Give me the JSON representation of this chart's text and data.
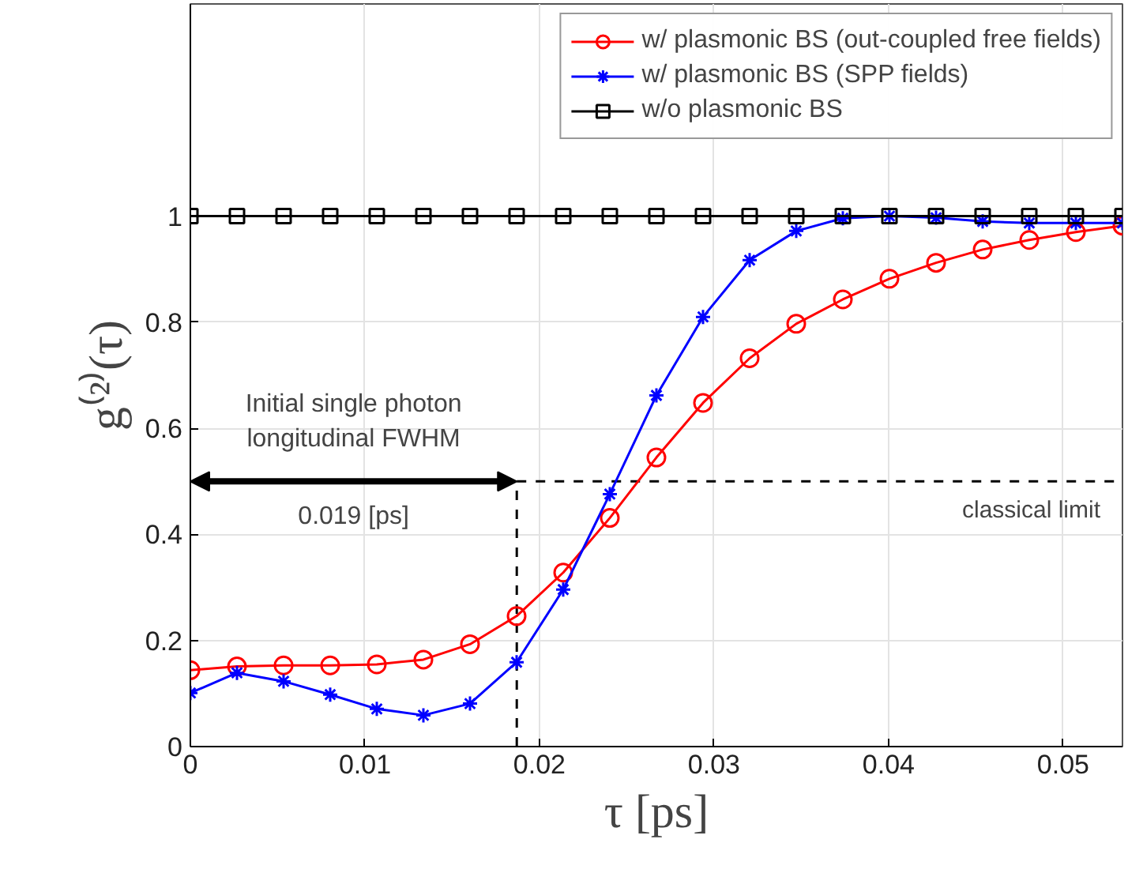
{
  "chart_data": {
    "type": "line",
    "xlabel": "τ [ps]",
    "ylabel": "g⁽²⁾(τ)",
    "x": [
      0,
      0.00267,
      0.00534,
      0.00801,
      0.01068,
      0.01335,
      0.01602,
      0.01869,
      0.02136,
      0.02403,
      0.0267,
      0.02937,
      0.03204,
      0.03471,
      0.03738,
      0.04005,
      0.04272,
      0.04539,
      0.04806,
      0.05073,
      0.0534
    ],
    "series": [
      {
        "name": "w/ plasmonic BS (out-coupled free fields)",
        "color": "#ff0000",
        "marker": "circle",
        "values": [
          0.144,
          0.151,
          0.153,
          0.153,
          0.155,
          0.164,
          0.193,
          0.246,
          0.328,
          0.431,
          0.545,
          0.648,
          0.732,
          0.797,
          0.843,
          0.882,
          0.912,
          0.937,
          0.955,
          0.97,
          0.982
        ]
      },
      {
        "name": "w/ plasmonic BS (SPP fields)",
        "color": "#0000ff",
        "marker": "cross",
        "values": [
          0.101,
          0.139,
          0.123,
          0.098,
          0.071,
          0.059,
          0.081,
          0.159,
          0.296,
          0.476,
          0.662,
          0.81,
          0.917,
          0.972,
          0.996,
          1.0,
          0.997,
          0.99,
          0.987,
          0.987,
          0.987
        ]
      },
      {
        "name": "w/o plasmonic BS",
        "color": "#000000",
        "marker": "square",
        "values": [
          1,
          1,
          1,
          1,
          1,
          1,
          1,
          1,
          1,
          1,
          1,
          1,
          1,
          1,
          1,
          1,
          1,
          1,
          1,
          1,
          1
        ]
      }
    ],
    "xlim": [
      0,
      0.0534
    ],
    "ylim": [
      0,
      1.4
    ],
    "xticks": [
      0,
      0.01,
      0.02,
      0.03,
      0.04,
      0.05
    ],
    "yticks": [
      0,
      0.2,
      0.4,
      0.6,
      0.8,
      1
    ],
    "ref_lines": [
      {
        "axis": "x",
        "value": 0.0187,
        "line_style": "dashed"
      },
      {
        "axis": "y",
        "value": 0.5,
        "label": "classical limit",
        "line_style": "dashed"
      }
    ],
    "annotations": [
      "Initial single photon\nlongitudinal FWHM",
      "0.019 [ps]"
    ],
    "grid": true,
    "legend": "top right",
    "line_style": "solid"
  }
}
